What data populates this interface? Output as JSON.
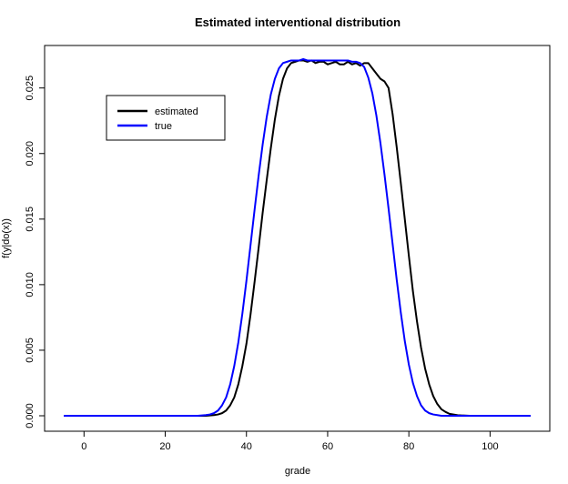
{
  "chart_data": {
    "type": "line",
    "title": "Estimated interventional distribution",
    "xlabel": "grade",
    "ylabel": "f(y|do(x))",
    "xlim": [
      -5,
      110
    ],
    "ylim": [
      0,
      0.0272
    ],
    "x_ticks": [
      0,
      20,
      40,
      60,
      80,
      100
    ],
    "y_ticks": [
      0.0,
      0.005,
      0.01,
      0.015,
      0.02,
      0.025
    ],
    "y_tick_labels": [
      "0.000",
      "0.005",
      "0.010",
      "0.015",
      "0.020",
      "0.025"
    ],
    "grid": false,
    "legend": {
      "placement": "top-left",
      "entries": [
        "estimated",
        "true"
      ]
    },
    "series": [
      {
        "name": "estimated",
        "color": "#000000",
        "x": [
          -5,
          0,
          10,
          20,
          28,
          30,
          32,
          33,
          34,
          35,
          36,
          37,
          38,
          39,
          40,
          41,
          42,
          43,
          44,
          45,
          46,
          47,
          48,
          49,
          50,
          51,
          52,
          53,
          54,
          55,
          56,
          57,
          58,
          59,
          60,
          61,
          62,
          63,
          64,
          65,
          66,
          67,
          68,
          69,
          70,
          71,
          72,
          73,
          74,
          75,
          76,
          77,
          78,
          79,
          80,
          81,
          82,
          83,
          84,
          85,
          86,
          87,
          88,
          89,
          90,
          92,
          95,
          100,
          110
        ],
        "y": [
          0,
          0,
          0,
          0,
          0,
          0,
          5e-05,
          0.0001,
          0.0002,
          0.0004,
          0.0008,
          0.0014,
          0.0024,
          0.0038,
          0.0055,
          0.0077,
          0.0102,
          0.0128,
          0.0155,
          0.018,
          0.0204,
          0.0226,
          0.0244,
          0.0257,
          0.0265,
          0.0269,
          0.027,
          0.0271,
          0.0271,
          0.027,
          0.0271,
          0.0269,
          0.027,
          0.027,
          0.0268,
          0.0269,
          0.027,
          0.0268,
          0.0268,
          0.027,
          0.0268,
          0.0269,
          0.0267,
          0.0269,
          0.0269,
          0.0265,
          0.0261,
          0.0257,
          0.0255,
          0.025,
          0.023,
          0.0205,
          0.0178,
          0.015,
          0.0122,
          0.0095,
          0.0072,
          0.0052,
          0.0036,
          0.0024,
          0.0015,
          0.0009,
          0.0005,
          0.0003,
          0.00015,
          4e-05,
          0,
          0,
          0
        ]
      },
      {
        "name": "true",
        "color": "#0000ff",
        "x": [
          -5,
          0,
          10,
          20,
          28,
          30,
          31,
          32,
          33,
          34,
          35,
          36,
          37,
          38,
          39,
          40,
          41,
          42,
          43,
          44,
          45,
          46,
          47,
          48,
          49,
          50,
          51,
          52,
          53,
          54,
          55,
          56,
          57,
          58,
          59,
          60,
          61,
          62,
          63,
          64,
          65,
          66,
          67,
          68,
          69,
          70,
          71,
          72,
          73,
          74,
          75,
          76,
          77,
          78,
          79,
          80,
          81,
          82,
          83,
          84,
          85,
          86,
          87,
          88,
          90,
          92,
          95,
          100,
          110
        ],
        "y": [
          0,
          0,
          0,
          0,
          0,
          5e-05,
          0.0001,
          0.0002,
          0.0004,
          0.0008,
          0.0014,
          0.0024,
          0.0038,
          0.0056,
          0.0078,
          0.0103,
          0.013,
          0.0157,
          0.0183,
          0.0207,
          0.0228,
          0.0245,
          0.0257,
          0.0265,
          0.0269,
          0.027,
          0.0271,
          0.0271,
          0.0271,
          0.0272,
          0.0271,
          0.0271,
          0.0271,
          0.0271,
          0.0271,
          0.0271,
          0.0271,
          0.0271,
          0.0271,
          0.0271,
          0.0271,
          0.027,
          0.027,
          0.0269,
          0.0266,
          0.0258,
          0.0246,
          0.0229,
          0.0208,
          0.0184,
          0.0158,
          0.0131,
          0.0104,
          0.0079,
          0.0057,
          0.0039,
          0.0025,
          0.0015,
          0.0008,
          0.0004,
          0.0002,
          0.0001,
          5e-05,
          0,
          0,
          0,
          0,
          0,
          0
        ]
      }
    ]
  }
}
